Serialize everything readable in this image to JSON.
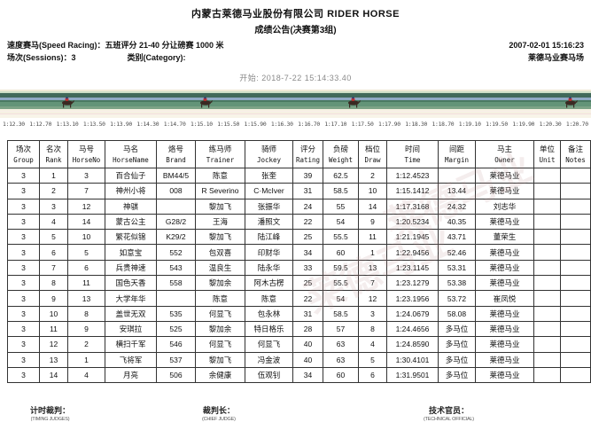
{
  "header": {
    "company": "内蒙古莱德马业股份有限公司 RIDER HORSE",
    "bulletin": "成绩公告(决赛第3组)",
    "race_type": "速度赛马(Speed Racing)：五班评分 21-40 分让磅赛 1000 米",
    "session": "场次(Sessions)：3",
    "category": "类别(Category):",
    "datetime": "2007-02-01  15:16:23",
    "venue": "莱德马业赛马场",
    "start_time": "开始: 2018-7-22 15:14:33.40"
  },
  "photo_finish": {
    "time_ruler": [
      "1:12.30",
      "1:12.70",
      "1:13.10",
      "1:13.50",
      "1:13.90",
      "1:14.30",
      "1:14.70",
      "1:15.10",
      "1:15.50",
      "1:15.90",
      "1:16.30",
      "1:16.70",
      "1:17.10",
      "1:17.50",
      "1:17.90",
      "1:18.30",
      "1:18.70",
      "1:19.10",
      "1:19.50",
      "1:19.90",
      "1:20.30",
      "1:20.70"
    ],
    "horse_color": "#3a2a22",
    "silk_color": "#c23030"
  },
  "watermark_text": "莱德马业",
  "table": {
    "columns": [
      {
        "key": "group",
        "zh": "场次",
        "en": "Group"
      },
      {
        "key": "rank",
        "zh": "名次",
        "en": "Rank"
      },
      {
        "key": "horse_no",
        "zh": "马号",
        "en": "HorseNo"
      },
      {
        "key": "horse_name",
        "zh": "马名",
        "en": "HorseName"
      },
      {
        "key": "brand",
        "zh": "烙号",
        "en": "Brand"
      },
      {
        "key": "trainer",
        "zh": "练马师",
        "en": "Trainer"
      },
      {
        "key": "jockey",
        "zh": "骑师",
        "en": "Jockey"
      },
      {
        "key": "rating",
        "zh": "评分",
        "en": "Rating"
      },
      {
        "key": "weight",
        "zh": "负磅",
        "en": "Weight"
      },
      {
        "key": "draw",
        "zh": "档位",
        "en": "Draw"
      },
      {
        "key": "time",
        "zh": "时间",
        "en": "Time"
      },
      {
        "key": "margin",
        "zh": "间距",
        "en": "Margin"
      },
      {
        "key": "owner",
        "zh": "马主",
        "en": "Owner"
      },
      {
        "key": "unit",
        "zh": "单位",
        "en": "Unit"
      },
      {
        "key": "notes",
        "zh": "备注",
        "en": "Notes"
      }
    ],
    "rows": [
      [
        "3",
        "1",
        "3",
        "百合仙子",
        "BM44/5",
        "陈意",
        "张奎",
        "39",
        "62.5",
        "2",
        "1:12.4523",
        "",
        "莱德马业",
        "",
        ""
      ],
      [
        "3",
        "2",
        "7",
        "神州小将",
        "008",
        "R Severino",
        "C·McIver",
        "31",
        "58.5",
        "10",
        "1:15.1412",
        "13.44",
        "莱德马业",
        "",
        ""
      ],
      [
        "3",
        "3",
        "12",
        "神骐",
        "",
        "黎加飞",
        "张振华",
        "24",
        "55",
        "14",
        "1:17.3168",
        "24.32",
        "刘志华",
        "",
        ""
      ],
      [
        "3",
        "4",
        "14",
        "蒙古公主",
        "G28/2",
        "王海",
        "潘照文",
        "22",
        "54",
        "9",
        "1:20.5234",
        "40.35",
        "莱德马业",
        "",
        ""
      ],
      [
        "3",
        "5",
        "10",
        "繁花似锦",
        "K29/2",
        "黎加飞",
        "陆江峰",
        "25",
        "55.5",
        "11",
        "1:21.1945",
        "43.71",
        "董荣生",
        "",
        ""
      ],
      [
        "3",
        "6",
        "5",
        "如意宝",
        "552",
        "包双喜",
        "印财华",
        "34",
        "60",
        "1",
        "1:22.9456",
        "52.46",
        "莱德马业",
        "",
        ""
      ],
      [
        "3",
        "7",
        "6",
        "兵贵神速",
        "543",
        "温良生",
        "陆永华",
        "33",
        "59.5",
        "13",
        "1:23.1145",
        "53.31",
        "莱德马业",
        "",
        ""
      ],
      [
        "3",
        "8",
        "11",
        "国色天香",
        "558",
        "黎加余",
        "阿木古楞",
        "25",
        "55.5",
        "7",
        "1:23.1279",
        "53.38",
        "莱德马业",
        "",
        ""
      ],
      [
        "3",
        "9",
        "13",
        "大学年华",
        "",
        "陈意",
        "陈意",
        "22",
        "54",
        "12",
        "1:23.1956",
        "53.72",
        "崔凤悦",
        "",
        ""
      ],
      [
        "3",
        "10",
        "8",
        "盖世无双",
        "535",
        "何显飞",
        "包永林",
        "31",
        "58.5",
        "3",
        "1:24.0679",
        "58.08",
        "莱德马业",
        "",
        ""
      ],
      [
        "3",
        "11",
        "9",
        "安琪拉",
        "525",
        "黎加余",
        "特日格乐",
        "28",
        "57",
        "8",
        "1:24.4656",
        "多马位",
        "莱德马业",
        "",
        ""
      ],
      [
        "3",
        "12",
        "2",
        "横扫千军",
        "546",
        "何显飞",
        "何显飞",
        "40",
        "63",
        "4",
        "1:24.8590",
        "多马位",
        "莱德马业",
        "",
        ""
      ],
      [
        "3",
        "13",
        "1",
        "飞将军",
        "537",
        "黎加飞",
        "冯金波",
        "40",
        "63",
        "5",
        "1:30.4101",
        "多马位",
        "莱德马业",
        "",
        ""
      ],
      [
        "3",
        "14",
        "4",
        "月亮",
        "506",
        "余健康",
        "伍观钊",
        "34",
        "60",
        "6",
        "1:31.9501",
        "多马位",
        "莱德马业",
        "",
        ""
      ]
    ]
  },
  "footer": {
    "timing_judge": "计时裁判：",
    "timing_judge_en": "(TIMING JUDGES)",
    "chief_judge": "裁判长：",
    "chief_judge_en": "(CHIEF JUDGE)",
    "technical_official": "技术官员：",
    "technical_official_en": "(TECHNICAL OFFICIAL)"
  }
}
